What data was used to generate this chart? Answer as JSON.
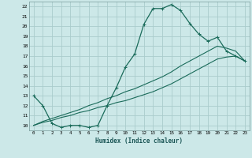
{
  "xlabel": "Humidex (Indice chaleur)",
  "background_color": "#cce8e8",
  "grid_color": "#aacccc",
  "line_color": "#1a6b5a",
  "xlim": [
    -0.5,
    23.5
  ],
  "ylim": [
    9.5,
    22.5
  ],
  "xticks": [
    0,
    1,
    2,
    3,
    4,
    5,
    6,
    7,
    8,
    9,
    10,
    11,
    12,
    13,
    14,
    15,
    16,
    17,
    18,
    19,
    20,
    21,
    22,
    23
  ],
  "yticks": [
    10,
    11,
    12,
    13,
    14,
    15,
    16,
    17,
    18,
    19,
    20,
    21,
    22
  ],
  "series1_x": [
    0,
    1,
    2,
    3,
    4,
    5,
    6,
    7,
    8,
    9,
    10,
    11,
    12,
    13,
    14,
    15,
    16,
    17,
    18,
    19,
    20,
    21,
    22,
    23
  ],
  "series1_y": [
    13,
    12,
    10.2,
    9.8,
    10,
    10,
    9.8,
    10,
    12,
    13.8,
    15.9,
    17.2,
    20.2,
    21.8,
    21.8,
    22.2,
    21.6,
    20.3,
    19.2,
    18.5,
    18.9,
    17.5,
    17.0,
    16.5
  ],
  "series2_x": [
    0,
    1,
    2,
    3,
    4,
    5,
    6,
    7,
    8,
    9,
    10,
    11,
    12,
    13,
    14,
    15,
    16,
    17,
    18,
    19,
    20,
    21,
    22,
    23
  ],
  "series2_y": [
    10,
    10.3,
    10.5,
    10.8,
    11.0,
    11.3,
    11.5,
    11.8,
    12.0,
    12.3,
    12.5,
    12.8,
    13.1,
    13.4,
    13.8,
    14.2,
    14.7,
    15.2,
    15.7,
    16.2,
    16.7,
    16.9,
    17.0,
    16.5
  ],
  "series3_x": [
    0,
    1,
    2,
    3,
    4,
    5,
    6,
    7,
    8,
    9,
    10,
    11,
    12,
    13,
    14,
    15,
    16,
    17,
    18,
    19,
    20,
    21,
    22,
    23
  ],
  "series3_y": [
    10,
    10.4,
    10.7,
    11.0,
    11.3,
    11.6,
    12.0,
    12.3,
    12.7,
    13.0,
    13.4,
    13.7,
    14.1,
    14.5,
    14.9,
    15.4,
    16.0,
    16.5,
    17.0,
    17.5,
    18.0,
    17.8,
    17.5,
    16.5
  ]
}
